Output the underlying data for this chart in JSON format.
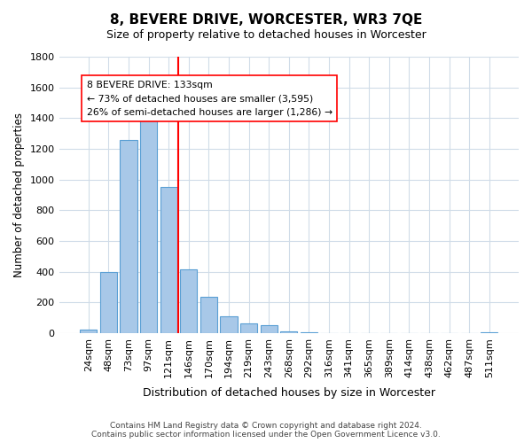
{
  "title": "8, BEVERE DRIVE, WORCESTER, WR3 7QE",
  "subtitle": "Size of property relative to detached houses in Worcester",
  "xlabel": "Distribution of detached houses by size in Worcester",
  "ylabel": "Number of detached properties",
  "bar_labels": [
    "24sqm",
    "48sqm",
    "73sqm",
    "97sqm",
    "121sqm",
    "146sqm",
    "170sqm",
    "194sqm",
    "219sqm",
    "243sqm",
    "268sqm",
    "292sqm",
    "316sqm",
    "341sqm",
    "365sqm",
    "389sqm",
    "414sqm",
    "438sqm",
    "462sqm",
    "487sqm",
    "511sqm"
  ],
  "bar_values": [
    25,
    395,
    1255,
    1385,
    950,
    415,
    235,
    110,
    65,
    50,
    10,
    5,
    0,
    0,
    0,
    0,
    0,
    0,
    0,
    0,
    5
  ],
  "bar_color": "#a8c8e8",
  "bar_edge_color": "#5a9fd4",
  "ref_line_x": 4.5,
  "annotation_lines": [
    "8 BEVERE DRIVE: 133sqm",
    "← 73% of detached houses are smaller (3,595)",
    "26% of semi-detached houses are larger (1,286) →"
  ],
  "ylim": [
    0,
    1800
  ],
  "yticks": [
    0,
    200,
    400,
    600,
    800,
    1000,
    1200,
    1400,
    1600,
    1800
  ],
  "footer_line1": "Contains HM Land Registry data © Crown copyright and database right 2024.",
  "footer_line2": "Contains public sector information licensed under the Open Government Licence v3.0.",
  "background_color": "#ffffff",
  "grid_color": "#d0dce8"
}
